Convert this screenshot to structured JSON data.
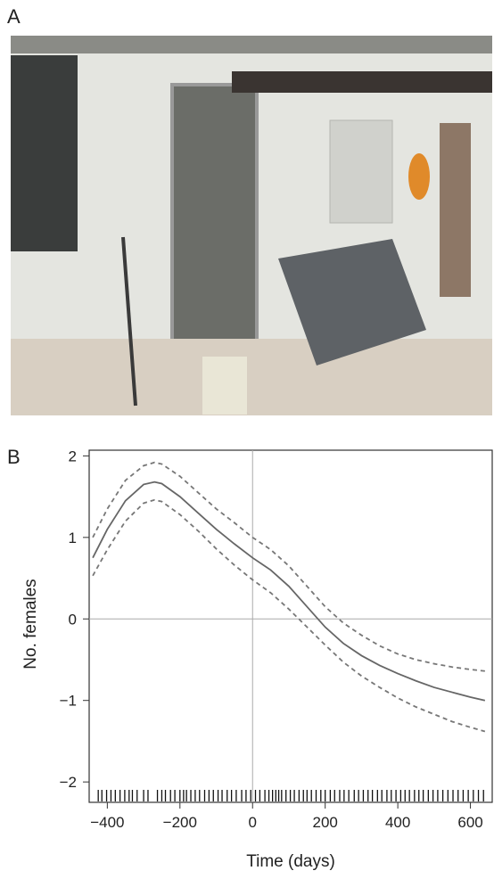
{
  "panel_labels": [
    "A",
    "B"
  ],
  "chart_data": {
    "type": "line",
    "xlabel": "Time (days)",
    "ylabel": "No. females",
    "xlim": [
      -450,
      660
    ],
    "ylim": [
      -2.25,
      2.07
    ],
    "xticks": [
      {
        "value": -400,
        "label": "−400"
      },
      {
        "value": -200,
        "label": "−200"
      },
      0,
      200,
      400,
      600
    ],
    "yticks": [
      {
        "value": -2,
        "label": "−2"
      },
      {
        "value": -1,
        "label": "−1"
      },
      0,
      1,
      2
    ],
    "reference_lines": {
      "x": 0,
      "y": 0
    },
    "x": [
      -440,
      -400,
      -350,
      -300,
      -270,
      -250,
      -200,
      -150,
      -100,
      -50,
      0,
      50,
      100,
      150,
      200,
      250,
      300,
      350,
      400,
      450,
      500,
      550,
      600,
      640
    ],
    "series": [
      {
        "color": "#777777",
        "dashed": true,
        "values": [
          1.0,
          1.35,
          1.7,
          1.88,
          1.92,
          1.9,
          1.75,
          1.55,
          1.35,
          1.18,
          1.0,
          0.85,
          0.65,
          0.4,
          0.15,
          -0.05,
          -0.2,
          -0.33,
          -0.43,
          -0.5,
          -0.55,
          -0.59,
          -0.62,
          -0.64
        ]
      },
      {
        "color": "#666666",
        "dashed": false,
        "values": [
          0.75,
          1.1,
          1.45,
          1.65,
          1.68,
          1.66,
          1.5,
          1.3,
          1.1,
          0.92,
          0.75,
          0.6,
          0.4,
          0.15,
          -0.1,
          -0.3,
          -0.45,
          -0.57,
          -0.67,
          -0.76,
          -0.84,
          -0.9,
          -0.96,
          -1.0
        ]
      },
      {
        "color": "#777777",
        "dashed": true,
        "values": [
          0.53,
          0.85,
          1.2,
          1.42,
          1.46,
          1.44,
          1.28,
          1.08,
          0.86,
          0.66,
          0.48,
          0.32,
          0.12,
          -0.1,
          -0.32,
          -0.53,
          -0.7,
          -0.84,
          -0.97,
          -1.08,
          -1.17,
          -1.26,
          -1.33,
          -1.38
        ]
      }
    ],
    "rug": [
      -425,
      -415,
      -402,
      -390,
      -378,
      -365,
      -352,
      -340,
      -331,
      -318,
      -300,
      -288,
      -262,
      -250,
      -240,
      -226,
      -214,
      -200,
      -190,
      -182,
      -170,
      -158,
      -146,
      -132,
      -120,
      -108,
      -95,
      -84,
      -70,
      -58,
      -45,
      -30,
      -18,
      -5,
      8,
      20,
      34,
      45,
      55,
      64,
      72,
      80,
      92,
      104,
      115,
      128,
      140,
      150,
      162,
      175,
      188,
      200,
      214,
      226,
      240,
      252,
      265,
      280,
      292,
      305,
      318,
      330,
      344,
      356,
      370,
      382,
      395,
      408,
      420,
      432,
      446,
      458,
      470,
      484,
      497,
      510,
      524,
      538,
      552,
      566,
      580,
      594,
      608,
      622,
      636
    ]
  }
}
